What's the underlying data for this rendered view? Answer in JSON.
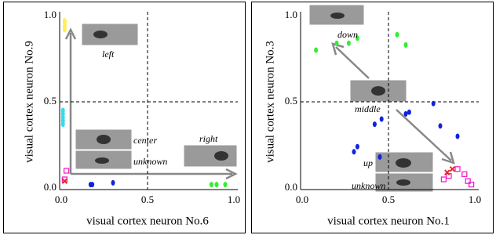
{
  "chart_data": [
    {
      "type": "scatter",
      "xlabel": "visual cortex neuron No.6",
      "ylabel": "visual cortex neuron No.9",
      "xlim": [
        0,
        1
      ],
      "ylim": [
        0,
        1
      ],
      "xticks": [
        {
          "value": 0,
          "label": "0.0"
        },
        {
          "value": 0.5,
          "label": "0.5"
        },
        {
          "value": 1,
          "label": "1.0"
        }
      ],
      "yticks": [
        {
          "value": 0,
          "label": "0.0"
        },
        {
          "value": 0.5,
          "label": "0.5"
        },
        {
          "value": 1,
          "label": "1.0"
        }
      ],
      "series": [
        {
          "color": "#ffee55",
          "marker": "dot",
          "x": [
            0.02,
            0.02,
            0.02,
            0.02
          ],
          "values": [
            0.92,
            0.94,
            0.96,
            0.97
          ]
        },
        {
          "color": "#33ddee",
          "marker": "dot",
          "x": [
            0.01,
            0.01,
            0.01,
            0.01,
            0.01
          ],
          "values": [
            0.37,
            0.39,
            0.41,
            0.43,
            0.45
          ]
        },
        {
          "color": "#ee22cc",
          "marker": "square",
          "x": [
            0.03,
            0.02
          ],
          "values": [
            0.1,
            0.05
          ]
        },
        {
          "color": "#ee2222",
          "marker": "x",
          "x": [
            0.02
          ],
          "values": [
            0.04
          ]
        },
        {
          "color": "#1122dd",
          "marker": "dot",
          "x": [
            0.17,
            0.18,
            0.3
          ],
          "values": [
            0.02,
            0.02,
            0.03
          ]
        },
        {
          "color": "#33ee33",
          "marker": "dot",
          "x": [
            0.87,
            0.9,
            0.95
          ],
          "values": [
            0.02,
            0.02,
            0.02
          ]
        }
      ],
      "annotations": [
        "left",
        "center",
        "unknown",
        "right"
      ]
    },
    {
      "type": "scatter",
      "xlabel": "visual cortex neuron No.1",
      "ylabel": "visual cortex neuron No.3",
      "xlim": [
        0,
        1
      ],
      "ylim": [
        0,
        1
      ],
      "xticks": [
        {
          "value": 0,
          "label": "0.0"
        },
        {
          "value": 0.5,
          "label": "0.5"
        },
        {
          "value": 1,
          "label": "1.0"
        }
      ],
      "yticks": [
        {
          "value": 0,
          "label": "0.0"
        },
        {
          "value": 0.5,
          "label": "0.5"
        },
        {
          "value": 1,
          "label": "1.0"
        }
      ],
      "series": [
        {
          "color": "#33ee33",
          "marker": "dot",
          "x": [
            0.08,
            0.2,
            0.27,
            0.32,
            0.55,
            0.6
          ],
          "values": [
            0.8,
            0.84,
            0.84,
            0.87,
            0.89,
            0.83
          ]
        },
        {
          "color": "#1122dd",
          "marker": "dot",
          "x": [
            0.3,
            0.32,
            0.42,
            0.46,
            0.6,
            0.62,
            0.76,
            0.8,
            0.9,
            0.45
          ],
          "values": [
            0.21,
            0.24,
            0.37,
            0.4,
            0.43,
            0.44,
            0.49,
            0.36,
            0.3,
            0.18
          ]
        },
        {
          "color": "#ee22cc",
          "marker": "square",
          "x": [
            0.82,
            0.85,
            0.9,
            0.94,
            0.96,
            0.98
          ],
          "values": [
            0.05,
            0.07,
            0.11,
            0.08,
            0.04,
            0.02
          ]
        },
        {
          "color": "#ee2222",
          "marker": "x",
          "x": [
            0.84,
            0.87
          ],
          "values": [
            0.09,
            0.11
          ]
        }
      ],
      "annotations": [
        "down",
        "middle",
        "up",
        "unknown"
      ]
    }
  ]
}
